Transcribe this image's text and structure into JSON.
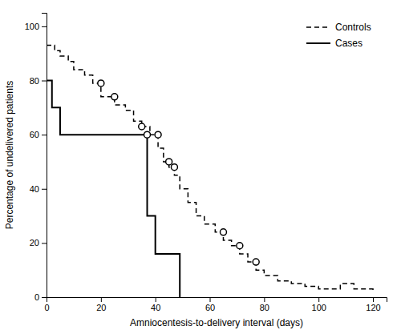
{
  "chart_data": {
    "type": "line",
    "xlabel": "Amniocentesis-to-delivery interval (days)",
    "ylabel": "Percentage of undelivered patients",
    "xlim": [
      0,
      125
    ],
    "ylim": [
      0,
      105
    ],
    "xticks": [
      0,
      20,
      40,
      60,
      80,
      100,
      120
    ],
    "yticks": [
      0,
      20,
      40,
      60,
      80,
      100
    ],
    "grid": false,
    "legend": "upper right",
    "series": [
      {
        "name": "Controls",
        "type": "step",
        "color": "black",
        "line_style": "dashed",
        "x": [
          0,
          3,
          3,
          5,
          5,
          8,
          8,
          10,
          10,
          14,
          14,
          17,
          17,
          20,
          20,
          25,
          25,
          29,
          29,
          32,
          32,
          35,
          35,
          38,
          38,
          41,
          41,
          43,
          43,
          45,
          45,
          47,
          47,
          49,
          49,
          52,
          52,
          55,
          55,
          58,
          58,
          62,
          62,
          65,
          65,
          68,
          68,
          71,
          71,
          74,
          74,
          77,
          77,
          80,
          80,
          85,
          85,
          90,
          90,
          95,
          95,
          100,
          100,
          108,
          108,
          113,
          113,
          120,
          120
        ],
        "values": [
          93,
          93,
          91,
          91,
          89,
          89,
          87,
          87,
          84,
          84,
          82,
          82,
          79,
          79,
          74,
          74,
          71,
          71,
          69,
          69,
          65,
          65,
          63,
          63,
          60,
          60,
          55,
          55,
          50,
          50,
          48,
          48,
          45,
          45,
          40,
          40,
          35,
          35,
          30,
          30,
          27,
          27,
          24,
          24,
          21,
          21,
          19,
          19,
          16,
          16,
          13,
          13,
          10,
          10,
          8,
          8,
          6,
          6,
          5,
          5,
          4,
          4,
          3,
          3,
          5,
          5,
          3,
          3,
          2
        ]
      },
      {
        "name": "Cases",
        "type": "step",
        "color": "black",
        "line_style": "solid",
        "x": [
          0,
          2,
          2,
          5,
          5,
          10,
          10,
          37,
          37,
          40,
          40,
          43,
          43,
          49,
          49
        ],
        "values": [
          80,
          80,
          70,
          70,
          60,
          60,
          60,
          60,
          30,
          30,
          16,
          16,
          16,
          16,
          0
        ]
      },
      {
        "type": "scatter",
        "marker": "circle",
        "color": "black",
        "x": [
          20,
          25,
          35,
          41,
          45,
          47,
          65,
          71,
          77
        ],
        "values": [
          79,
          74,
          63,
          60,
          50,
          48,
          24,
          19,
          13
        ]
      },
      {
        "type": "scatter",
        "marker": "circle",
        "color": "black",
        "x": [
          37
        ],
        "values": [
          60
        ]
      }
    ]
  }
}
